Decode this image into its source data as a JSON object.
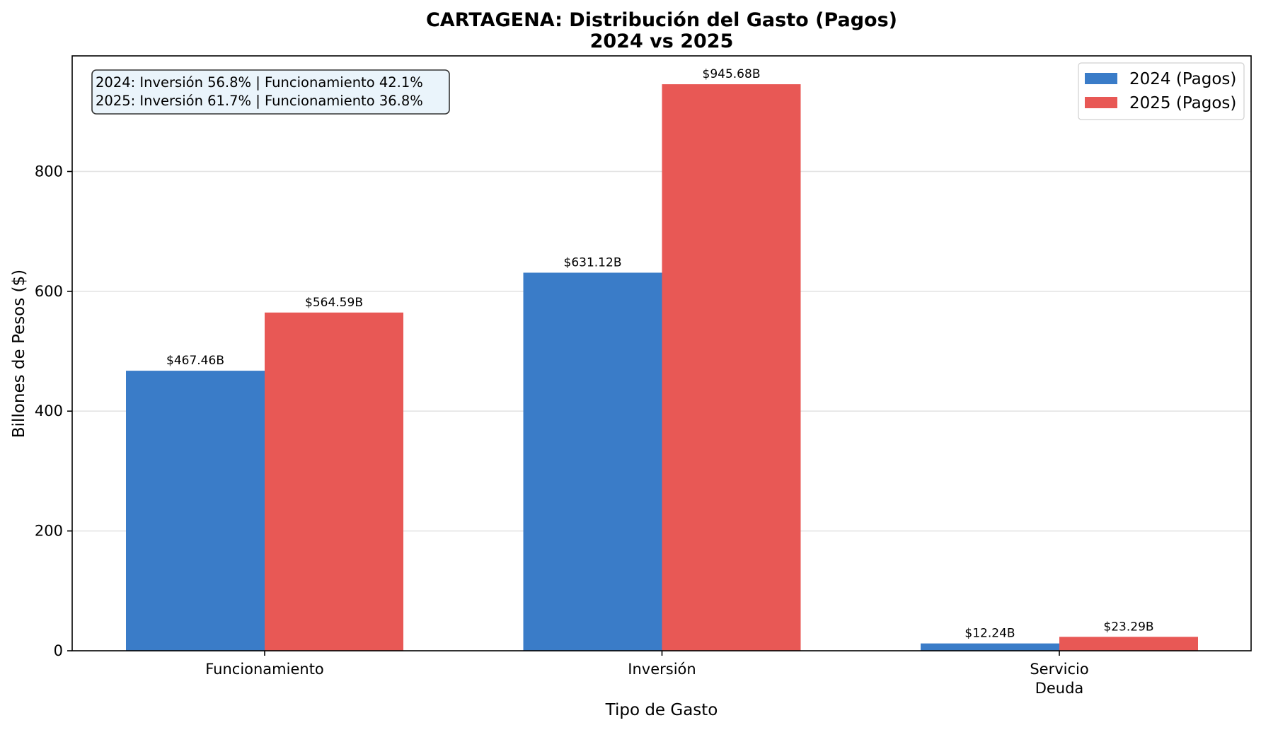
{
  "chart_data": {
    "type": "bar",
    "title": "CARTAGENA: Distribución del Gasto (Pagos)",
    "subtitle": "2024 vs 2025",
    "xlabel": "Tipo de Gasto",
    "ylabel": "Billones de Pesos ($)",
    "categories": [
      [
        "Funcionamiento"
      ],
      [
        "Inversión"
      ],
      [
        "Servicio",
        "Deuda"
      ]
    ],
    "series": [
      {
        "name": "2024 (Pagos)",
        "color": "#3a7cc8",
        "values": [
          467.46,
          631.12,
          12.24
        ],
        "labels": [
          "$467.46B",
          "$631.12B",
          "$12.24B"
        ]
      },
      {
        "name": "2025 (Pagos)",
        "color": "#e85855",
        "values": [
          564.59,
          945.68,
          23.29
        ],
        "labels": [
          "$564.59B",
          "$945.68B",
          "$23.29B"
        ]
      }
    ],
    "ylim": [
      0,
      993
    ],
    "yticks": [
      0,
      200,
      400,
      600,
      800
    ],
    "grid": "y",
    "legend_position": "top-right",
    "annotation": [
      "2024: Inversión 56.8% | Funcionamiento 42.1%",
      "2025: Inversión 61.7% | Funcionamiento 36.8%"
    ]
  }
}
